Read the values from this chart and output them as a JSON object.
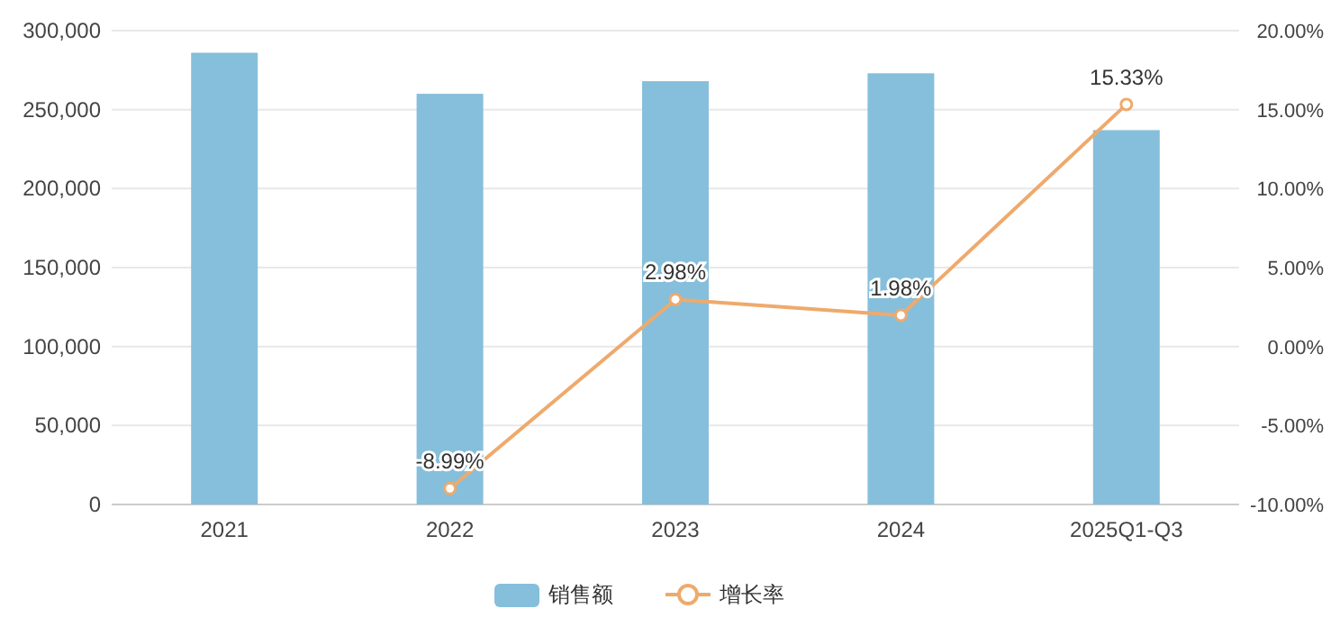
{
  "chart_data": {
    "type": "bar",
    "categories": [
      "2021",
      "2022",
      "2023",
      "2024",
      "2025Q1-Q3"
    ],
    "series": [
      {
        "name": "销售额",
        "color": "#86bfdb",
        "values": [
          286000,
          260000,
          268000,
          273000,
          237000
        ]
      },
      {
        "name": "增长率",
        "type": "line",
        "axis": "y2",
        "color": "#eeaa6c",
        "values": [
          null,
          -8.99,
          2.98,
          1.98,
          15.33
        ],
        "value_labels": [
          null,
          "-8.99%",
          "2.98%",
          "1.98%",
          "15.33%"
        ]
      }
    ],
    "ylim": [
      0,
      300000
    ],
    "yticks": [
      {
        "value": 0,
        "label": "0"
      },
      {
        "value": 50000,
        "label": "50,000"
      },
      {
        "value": 100000,
        "label": "100,000"
      },
      {
        "value": 150000,
        "label": "150,000"
      },
      {
        "value": 200000,
        "label": "200,000"
      },
      {
        "value": 250000,
        "label": "250,000"
      },
      {
        "value": 300000,
        "label": "300,000"
      }
    ],
    "y2lim": [
      -10,
      20
    ],
    "y2ticks": [
      {
        "value": -10,
        "label": "-10.00%"
      },
      {
        "value": -5,
        "label": "-5.00%"
      },
      {
        "value": 0,
        "label": "0.00%"
      },
      {
        "value": 5,
        "label": "5.00%"
      },
      {
        "value": 10,
        "label": "10.00%"
      },
      {
        "value": 15,
        "label": "15.00%"
      },
      {
        "value": 20,
        "label": "20.00%"
      }
    ],
    "grid": "y",
    "legend": "bottom",
    "marker": "circle"
  }
}
